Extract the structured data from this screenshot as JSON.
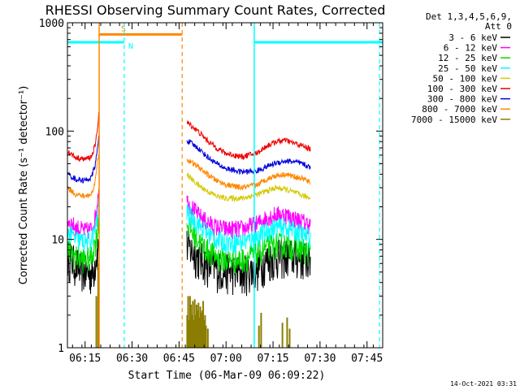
{
  "chart_data": {
    "type": "line",
    "title": "RHESSI Observing Summary Count Rates, Corrected",
    "ylabel": "Corrected Count Rate (s⁻¹ detector⁻¹)",
    "xlabel": "Start Time (06-Mar-09 06:09:22)",
    "timestamp": "14-Oct-2021 03:31",
    "y_scale": "log",
    "ylim": [
      1,
      1000
    ],
    "y_ticks": [
      1,
      10,
      100,
      1000
    ],
    "y_tick_labels": [
      "1",
      "10",
      "100",
      "1000"
    ],
    "xlim_minutes": [
      369.37,
      470.0
    ],
    "x_ticks_minutes": [
      375,
      390,
      405,
      420,
      435,
      450,
      465
    ],
    "x_tick_labels": [
      "06:15",
      "06:30",
      "06:45",
      "07:00",
      "07:15",
      "07:30",
      "07:45"
    ],
    "legend": {
      "position": "right",
      "header": [
        "Det 1,3,4,5,6,9,",
        "Att 0"
      ],
      "entries": [
        {
          "label": "3 - 6 keV",
          "color": "#000000"
        },
        {
          "label": "6 - 12 keV",
          "color": "#ff00ff"
        },
        {
          "label": "12 - 25 keV",
          "color": "#00dd00"
        },
        {
          "label": "25 - 50 keV",
          "color": "#00ffff"
        },
        {
          "label": "50 - 100 keV",
          "color": "#d4c800"
        },
        {
          "label": "100 - 300 keV",
          "color": "#ee0000"
        },
        {
          "label": "300 - 800 keV",
          "color": "#0000dd"
        },
        {
          "label": "800 - 7000 keV",
          "color": "#ff8800"
        },
        {
          "label": "7000 - 15000 keV",
          "color": "#8b7d00"
        }
      ]
    },
    "annotations": [
      {
        "label": "S",
        "color": "#ff8800",
        "start_min": 379.5,
        "end_min": 406.0,
        "level": 780,
        "type": "saa"
      },
      {
        "label": "N",
        "color": "#00ffff",
        "start_min": 369.37,
        "end_min": 387.5,
        "level": 660,
        "type": "night"
      },
      {
        "label": "",
        "color": "#00ffff",
        "start_min": 429.0,
        "end_min": 470.0,
        "level": 660,
        "type": "night"
      }
    ],
    "vlines": [
      {
        "x_min": 387.5,
        "color": "#00ffff"
      },
      {
        "x_min": 406.0,
        "color": "#ff8800"
      },
      {
        "x_min": 469.0,
        "color": "#00ffff"
      }
    ],
    "segments": [
      {
        "start_min": 369.37,
        "end_min": 379.5
      },
      {
        "start_min": 407.5,
        "end_min": 469.5
      }
    ],
    "series": [
      {
        "name": "3 - 6 keV",
        "color": "#000000",
        "noise": 0.42,
        "points": [
          [
            369.5,
            7
          ],
          [
            372,
            6
          ],
          [
            375,
            5
          ],
          [
            377.5,
            5
          ],
          [
            378.5,
            7
          ],
          [
            379.3,
            9
          ],
          [
            407.5,
            9
          ],
          [
            409,
            8
          ],
          [
            411,
            7
          ],
          [
            414,
            6
          ],
          [
            417,
            5.5
          ],
          [
            420,
            5.2
          ],
          [
            425,
            5
          ],
          [
            430,
            5.5
          ],
          [
            433,
            6.5
          ],
          [
            436,
            7
          ],
          [
            439,
            7.2
          ],
          [
            442,
            7
          ],
          [
            445,
            6.8
          ],
          [
            447,
            6.5
          ]
        ]
      },
      {
        "name": "6 - 12 keV",
        "color": "#ff00ff",
        "noise": 0.2,
        "points": [
          [
            369.5,
            15
          ],
          [
            372,
            13
          ],
          [
            375,
            12
          ],
          [
            377,
            12.5
          ],
          [
            378.5,
            17
          ],
          [
            379.3,
            30
          ],
          [
            407.5,
            23
          ],
          [
            409,
            20
          ],
          [
            411,
            17
          ],
          [
            414,
            14.5
          ],
          [
            417,
            13
          ],
          [
            420,
            12.5
          ],
          [
            425,
            12.5
          ],
          [
            430,
            14
          ],
          [
            433,
            16
          ],
          [
            436,
            17
          ],
          [
            439,
            17
          ],
          [
            442,
            15.5
          ],
          [
            445,
            14.5
          ],
          [
            447,
            13.5
          ]
        ]
      },
      {
        "name": "12 - 25 keV",
        "color": "#00dd00",
        "noise": 0.28,
        "points": [
          [
            369.5,
            8
          ],
          [
            372,
            7
          ],
          [
            375,
            6.5
          ],
          [
            377,
            7
          ],
          [
            378.5,
            10
          ],
          [
            379.3,
            15
          ],
          [
            407.5,
            14
          ],
          [
            409,
            12
          ],
          [
            411,
            10
          ],
          [
            414,
            8
          ],
          [
            417,
            7
          ],
          [
            420,
            6.5
          ],
          [
            425,
            6.5
          ],
          [
            430,
            7.5
          ],
          [
            433,
            8.5
          ],
          [
            436,
            9
          ],
          [
            439,
            9
          ],
          [
            442,
            8.5
          ],
          [
            445,
            8
          ],
          [
            447,
            7.5
          ]
        ]
      },
      {
        "name": "25 - 50 keV",
        "color": "#00ffff",
        "noise": 0.22,
        "points": [
          [
            369.5,
            12
          ],
          [
            372,
            10
          ],
          [
            375,
            9.5
          ],
          [
            377,
            10
          ],
          [
            378.5,
            13
          ],
          [
            379.3,
            20
          ],
          [
            407.5,
            18
          ],
          [
            409,
            16
          ],
          [
            411,
            14
          ],
          [
            414,
            11.5
          ],
          [
            417,
            10
          ],
          [
            420,
            9.5
          ],
          [
            425,
            9.5
          ],
          [
            430,
            10.5
          ],
          [
            433,
            12
          ],
          [
            436,
            13
          ],
          [
            439,
            13
          ],
          [
            442,
            12
          ],
          [
            445,
            11
          ],
          [
            447,
            10.5
          ]
        ]
      },
      {
        "name": "50 - 100 keV",
        "color": "#d4c800",
        "noise": 0.06,
        "points": [
          [
            407.5,
            40
          ],
          [
            409,
            36
          ],
          [
            411,
            32
          ],
          [
            414,
            28
          ],
          [
            417,
            25
          ],
          [
            420,
            24
          ],
          [
            425,
            24
          ],
          [
            430,
            26
          ],
          [
            433,
            28
          ],
          [
            436,
            30
          ],
          [
            439,
            29
          ],
          [
            442,
            27
          ],
          [
            445,
            25
          ],
          [
            447,
            24
          ]
        ]
      },
      {
        "name": "100 - 300 keV",
        "color": "#ee0000",
        "noise": 0.06,
        "points": [
          [
            369.5,
            65
          ],
          [
            372,
            57
          ],
          [
            375,
            55
          ],
          [
            377,
            58
          ],
          [
            378.3,
            75
          ],
          [
            379,
            110
          ],
          [
            379.4,
            150
          ],
          [
            407.5,
            120
          ],
          [
            409,
            112
          ],
          [
            411,
            100
          ],
          [
            414,
            82
          ],
          [
            417,
            70
          ],
          [
            420,
            62
          ],
          [
            425,
            58
          ],
          [
            430,
            63
          ],
          [
            433,
            73
          ],
          [
            436,
            80
          ],
          [
            439,
            82
          ],
          [
            442,
            77
          ],
          [
            445,
            72
          ],
          [
            447,
            68
          ]
        ]
      },
      {
        "name": "300 - 800 keV",
        "color": "#0000dd",
        "noise": 0.06,
        "points": [
          [
            369.5,
            40
          ],
          [
            372,
            36
          ],
          [
            375,
            35
          ],
          [
            377,
            37
          ],
          [
            378.3,
            50
          ],
          [
            379,
            70
          ],
          [
            379.4,
            90
          ],
          [
            407.5,
            82
          ],
          [
            409,
            77
          ],
          [
            411,
            70
          ],
          [
            414,
            58
          ],
          [
            417,
            50
          ],
          [
            420,
            45
          ],
          [
            425,
            42
          ],
          [
            430,
            43
          ],
          [
            433,
            47
          ],
          [
            436,
            51
          ],
          [
            439,
            53
          ],
          [
            442,
            52
          ],
          [
            445,
            49
          ],
          [
            447,
            46
          ]
        ]
      },
      {
        "name": "800 - 7000 keV",
        "color": "#ff8800",
        "noise": 0.06,
        "points": [
          [
            369.5,
            30
          ],
          [
            372,
            26
          ],
          [
            375,
            25
          ],
          [
            377,
            26
          ],
          [
            378.3,
            35
          ],
          [
            379,
            55
          ],
          [
            379.4,
            60
          ],
          [
            407.5,
            55
          ],
          [
            409,
            51
          ],
          [
            411,
            47
          ],
          [
            414,
            40
          ],
          [
            417,
            35
          ],
          [
            420,
            32
          ],
          [
            425,
            30
          ],
          [
            430,
            32
          ],
          [
            433,
            36
          ],
          [
            436,
            39
          ],
          [
            439,
            40
          ],
          [
            442,
            38
          ],
          [
            445,
            36
          ],
          [
            447,
            33
          ]
        ]
      }
    ],
    "spikes": {
      "name": "7000 - 15000 keV",
      "color": "#8b7d00",
      "x_min": [
        378.6,
        379.2,
        407.6,
        407.9,
        408.2,
        408.5,
        408.8,
        409.1,
        409.4,
        409.7,
        410.0,
        410.3,
        410.6,
        410.9,
        411.2,
        411.5,
        411.8,
        412.1,
        412.4,
        412.7,
        413.0,
        413.3,
        413.6,
        414.2,
        430.5,
        431.2,
        438.0,
        439.5,
        440.3
      ],
      "values": [
        3,
        6,
        2,
        3,
        1.8,
        3,
        2.5,
        2,
        2.7,
        1.8,
        2.8,
        2,
        2.5,
        2.2,
        2.6,
        1.9,
        2.4,
        2.1,
        2.2,
        2.7,
        1.8,
        2,
        1.6,
        1.5,
        1.6,
        2.1,
        1.7,
        1.9,
        1.5
      ]
    }
  }
}
